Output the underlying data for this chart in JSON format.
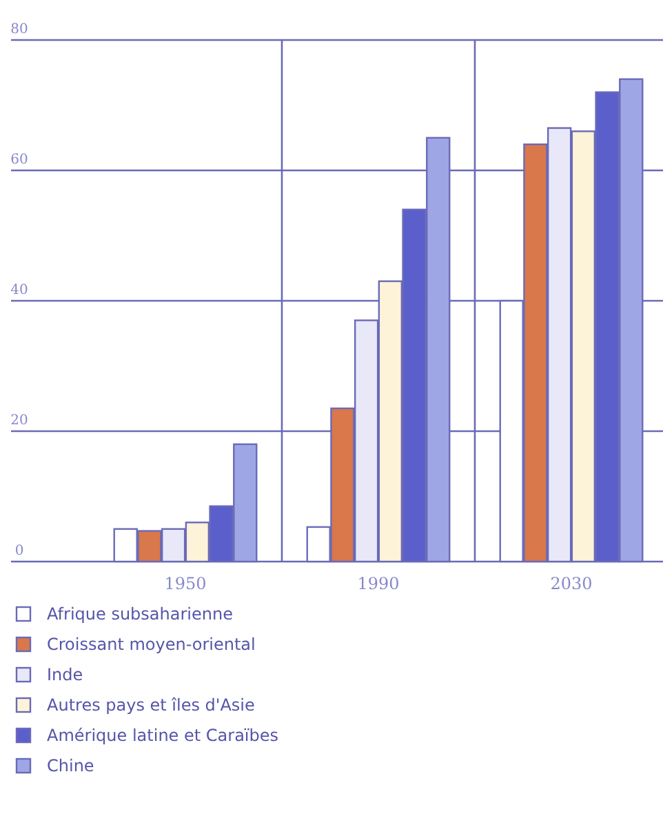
{
  "chart_data": {
    "type": "bar",
    "categories": [
      "1950",
      "1990",
      "2030"
    ],
    "series": [
      {
        "name": "Afrique subsaharienne",
        "color": "#ffffff",
        "values": [
          5,
          5.3,
          40
        ]
      },
      {
        "name": "Croissant moyen-oriental",
        "color": "#d9784a",
        "values": [
          4.7,
          23.5,
          64
        ]
      },
      {
        "name": "Inde",
        "color": "#e8e8f8",
        "values": [
          5,
          37,
          66.5
        ]
      },
      {
        "name": "Autres pays et îles d'Asie",
        "color": "#fdf3d8",
        "values": [
          6,
          43,
          66
        ]
      },
      {
        "name": "Amérique latine et Caraïbes",
        "color": "#5a5fcc",
        "values": [
          8.5,
          54,
          72
        ]
      },
      {
        "name": "Chine",
        "color": "#9fa6e6",
        "values": [
          18,
          65,
          74
        ]
      }
    ],
    "ylim": [
      0,
      80
    ],
    "yticks": [
      0,
      20,
      40,
      60,
      80
    ],
    "grid": true,
    "legend": "bottom"
  }
}
